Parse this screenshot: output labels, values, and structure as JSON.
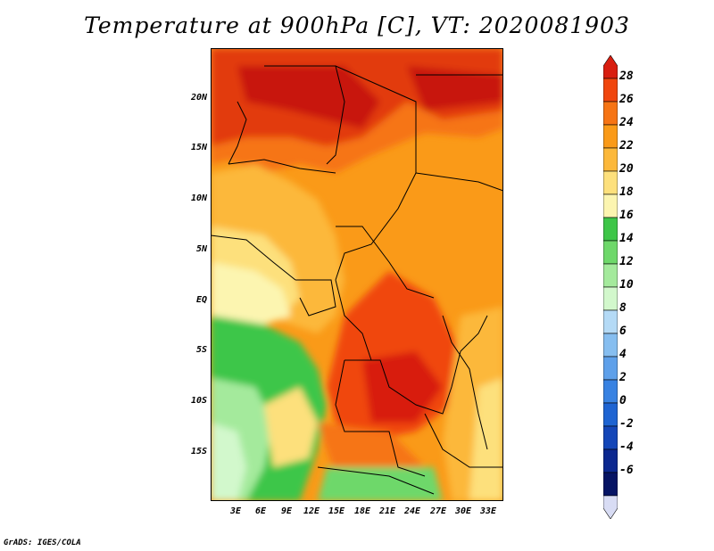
{
  "title": "Temperature at 900hPa [C], VT: 2020081903",
  "footer": "GrADS: IGES/COLA",
  "map": {
    "lat_labels": [
      "20N",
      "15N",
      "10N",
      "5N",
      "EQ",
      "5S",
      "10S",
      "15S"
    ],
    "lon_labels": [
      "3E",
      "6E",
      "9E",
      "12E",
      "15E",
      "18E",
      "21E",
      "24E",
      "27E",
      "30E",
      "33E"
    ]
  },
  "colorbar": {
    "labels": [
      "28",
      "26",
      "24",
      "22",
      "20",
      "18",
      "16",
      "14",
      "12",
      "10",
      "8",
      "6",
      "4",
      "2",
      "0",
      "-2",
      "-4",
      "-6"
    ],
    "colors": [
      "#d81e10",
      "#f0460e",
      "#f67414",
      "#fa9a18",
      "#fcb83a",
      "#fde07c",
      "#fcf5b0",
      "#3ec648",
      "#6ed86a",
      "#a4ea9c",
      "#d2f8cc",
      "#b4daf6",
      "#86bef0",
      "#5ea0ea",
      "#3882e2",
      "#1e64d2",
      "#1446b8",
      "#0c2890",
      "#061464",
      "#d8dcf4"
    ]
  },
  "colors": {
    "hot_top": "#d81e10",
    "orange": "#f67414",
    "yellow": "#fde07c",
    "green": "#3ec648",
    "pale_green": "#a4ea9c"
  }
}
